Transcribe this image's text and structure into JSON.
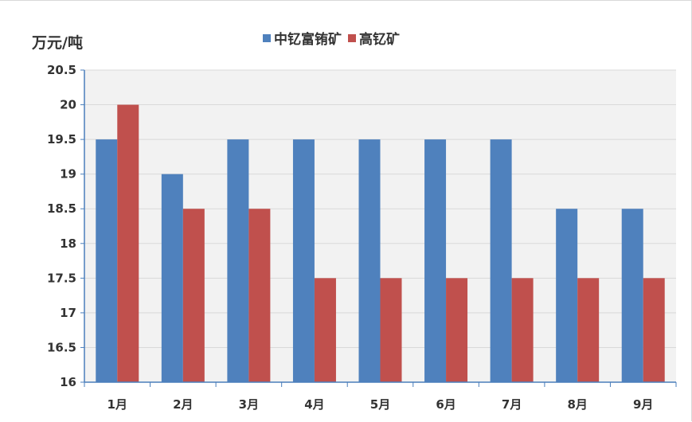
{
  "chart_data": {
    "type": "bar",
    "ylabel": "万元/吨",
    "categories": [
      "1月",
      "2月",
      "3月",
      "4月",
      "5月",
      "6月",
      "7月",
      "8月",
      "9月"
    ],
    "series": [
      {
        "name": "中钇富铕矿",
        "color": "#4F81BD",
        "values": [
          19.5,
          19,
          19.5,
          19.5,
          19.5,
          19.5,
          19.5,
          18.5,
          18.5
        ]
      },
      {
        "name": "高钇矿",
        "color": "#C0504D",
        "values": [
          20,
          18.5,
          18.5,
          17.5,
          17.5,
          17.5,
          17.5,
          17.5,
          17.5
        ]
      }
    ],
    "ylim": [
      16,
      20.5
    ],
    "yticks": [
      "16",
      "16.5",
      "17",
      "17.5",
      "18",
      "18.5",
      "19",
      "19.5",
      "20",
      "20.5"
    ],
    "grid": true,
    "legend_position": "top-center"
  }
}
